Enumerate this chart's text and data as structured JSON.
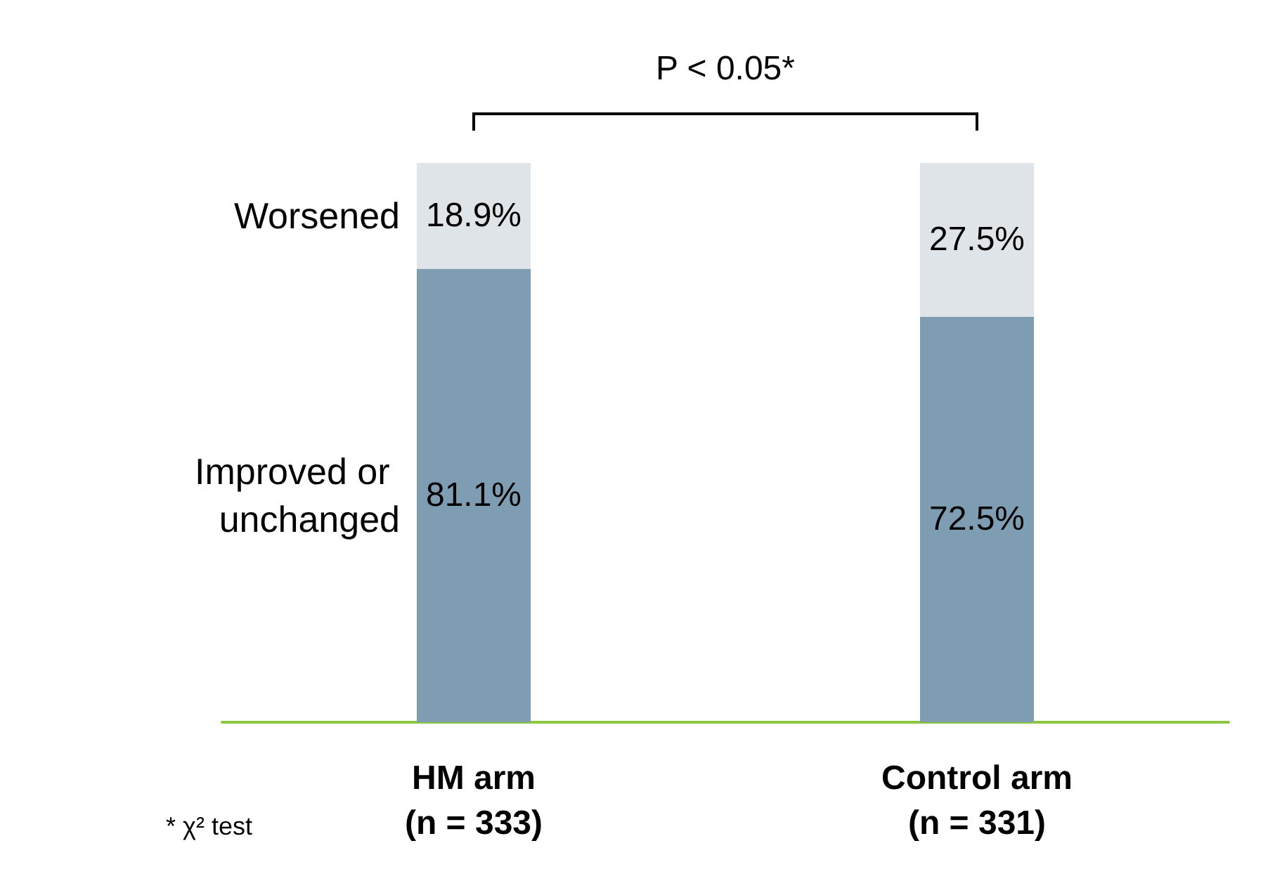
{
  "chart_data": {
    "type": "bar",
    "stacked": true,
    "categories": [
      "HM arm\n(n = 333)",
      "Control arm\n(n = 331)"
    ],
    "series": [
      {
        "name": "Improved or unchanged",
        "color": "#7f9db2",
        "values": [
          81.1,
          72.5
        ],
        "value_labels": [
          "81.1%",
          "72.5%"
        ]
      },
      {
        "name": "Worsened",
        "color": "#dfe4e8",
        "values": [
          18.9,
          27.5
        ],
        "value_labels": [
          "18.9%",
          "27.5%"
        ]
      }
    ],
    "annotations": [
      "P < 0.05*",
      "* χ² test"
    ]
  }
}
